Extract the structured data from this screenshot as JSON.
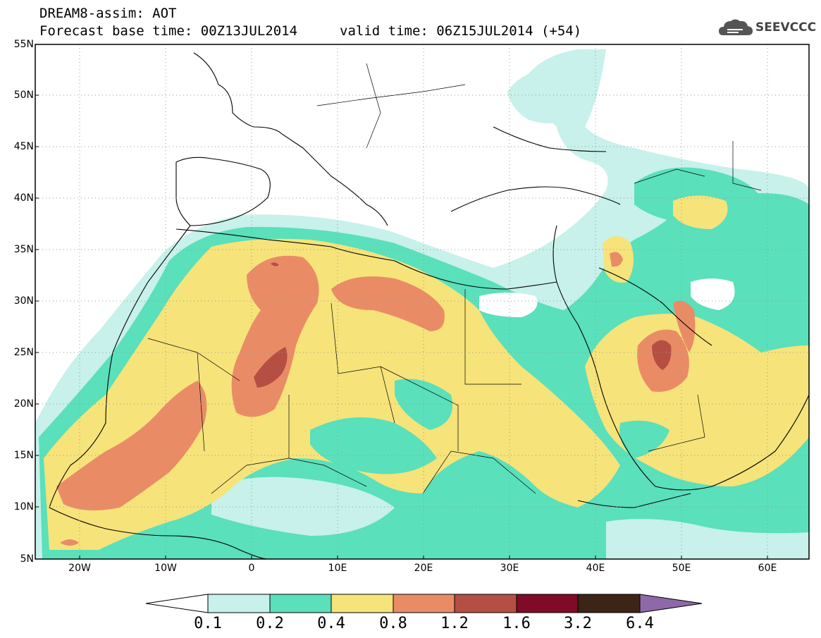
{
  "header": {
    "title_line1": "DREAM8-assim: AOT",
    "title_line2": "Forecast base time: 00Z13JUL2014",
    "valid_time": "valid time: 06Z15JUL2014 (+54)"
  },
  "logo": {
    "text": "SEEVCCC",
    "icon": "cloud-logo-icon"
  },
  "axes": {
    "latitudes": [
      "55N",
      "50N",
      "45N",
      "40N",
      "35N",
      "30N",
      "25N",
      "20N",
      "15N",
      "10N",
      "5N"
    ],
    "longitudes": [
      "20W",
      "10W",
      "0",
      "10E",
      "20E",
      "30E",
      "40E",
      "50E",
      "60E"
    ]
  },
  "colorbar": {
    "labels": [
      "0.1",
      "0.2",
      "0.4",
      "0.8",
      "1.2",
      "1.6",
      "3.2",
      "6.4"
    ],
    "colors": [
      "#ffffff",
      "#c7f1ea",
      "#5ae0bb",
      "#f6e37a",
      "#e98c66",
      "#b54f43",
      "#7f0b28",
      "#3c2516",
      "#8e69a8"
    ]
  },
  "map_colors": {
    "level_0_1": "#c7f1ea",
    "level_0_2": "#5ae0bb",
    "level_0_4": "#f6e37a",
    "level_0_8": "#e98c66",
    "level_1_2": "#b54f43",
    "grid": "#9a9a9a",
    "coast": "#000000"
  }
}
